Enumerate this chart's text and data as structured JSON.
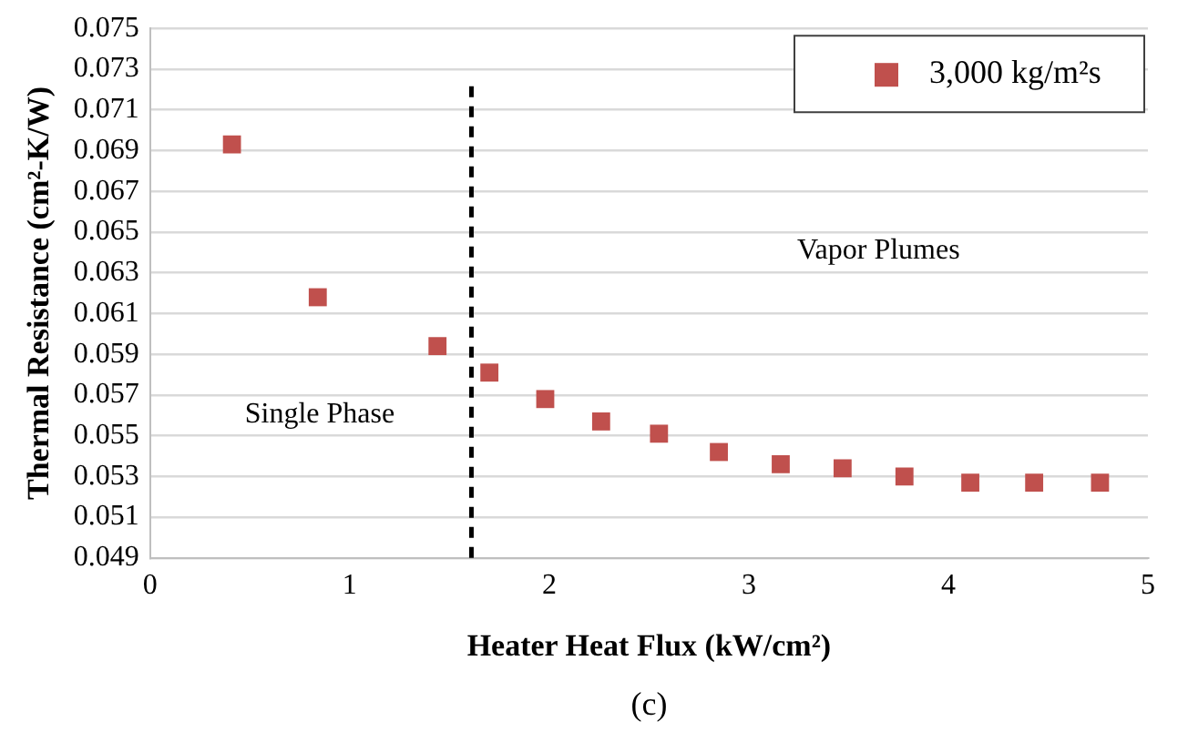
{
  "chart_data": {
    "type": "scatter",
    "xlabel": "Heater Heat Flux (kW/cm²)",
    "ylabel": "Thermal Resistance (cm²-K/W)",
    "xlim": [
      0,
      5
    ],
    "xticks": [
      0,
      1,
      2,
      3,
      4,
      5
    ],
    "ylim": [
      0.049,
      0.075
    ],
    "yticks": [
      0.049,
      0.051,
      0.053,
      0.055,
      0.057,
      0.059,
      0.061,
      0.063,
      0.065,
      0.067,
      0.069,
      0.071,
      0.073,
      0.075
    ],
    "grid": "y",
    "legend": "top right",
    "marker": "square",
    "series": [
      {
        "name": "3,000 kg/m²s",
        "color": "#c0504d",
        "x": [
          0.41,
          0.84,
          1.44,
          1.7,
          1.98,
          2.26,
          2.55,
          2.85,
          3.16,
          3.47,
          3.78,
          4.11,
          4.43,
          4.76
        ],
        "values": [
          0.0693,
          0.0618,
          0.0594,
          0.0581,
          0.0568,
          0.0557,
          0.0551,
          0.0542,
          0.0536,
          0.0534,
          0.053,
          0.0527,
          0.0527,
          0.0527
        ]
      }
    ],
    "ref_lines": [
      {
        "axis": "x",
        "value": 1.61,
        "color": "#000000",
        "line_style": "dashed"
      }
    ],
    "annotations": [
      "Single Phase",
      "Vapor Plumes",
      "(c)"
    ]
  }
}
